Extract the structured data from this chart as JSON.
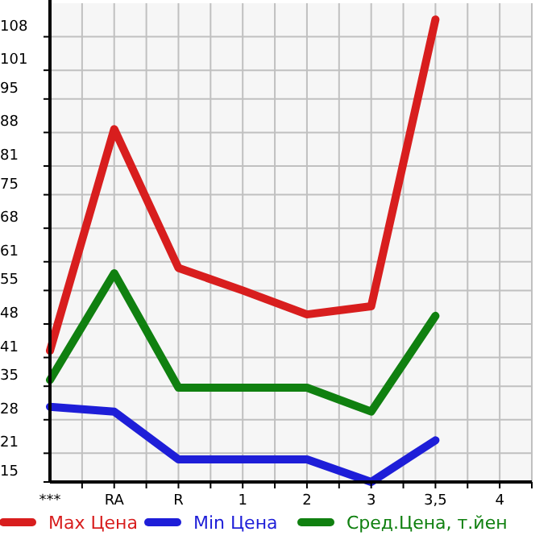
{
  "chart_data": {
    "type": "line",
    "categories": [
      "***",
      "RA",
      "R",
      "1",
      "2",
      "3",
      "3,5",
      "4"
    ],
    "series": [
      {
        "name": "Max Цена",
        "color": "#d81e1e",
        "values": [
          42.4,
          88.7,
          59.7,
          55,
          50,
          51.7,
          111.6,
          null
        ]
      },
      {
        "name": "Min Цена",
        "color": "#1e1ed8",
        "values": [
          30.7,
          29.7,
          19.7,
          19.7,
          19.7,
          15,
          23.7,
          null
        ]
      },
      {
        "name": "Сред.Цена, т.йен",
        "color": "#108010",
        "values": [
          36.3,
          58.6,
          34.7,
          34.7,
          34.7,
          29.7,
          49.7,
          null
        ]
      }
    ],
    "ylim": [
      15,
      115
    ],
    "yticks": [
      15,
      21,
      28,
      35,
      41,
      48,
      55,
      61,
      68,
      75,
      81,
      88,
      95,
      101,
      108
    ],
    "grid": true,
    "legend": "bottom",
    "marker": "none",
    "line_style": "solid"
  }
}
